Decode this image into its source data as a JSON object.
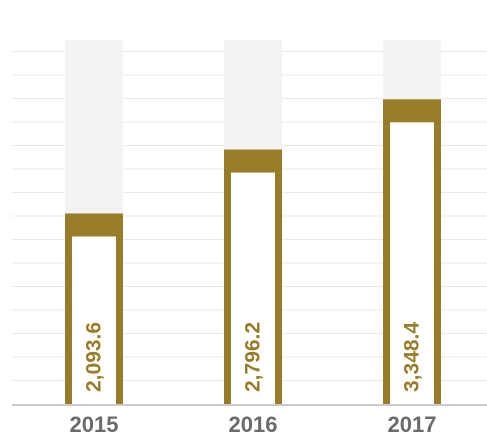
{
  "chart_data": {
    "type": "bar",
    "categories": [
      "2015",
      "2016",
      "2017"
    ],
    "values": [
      2093.6,
      2796.2,
      3348.4
    ],
    "value_labels": [
      "2,093.6",
      "2,796.2",
      "3,348.4"
    ],
    "ylim": [
      0,
      4000
    ],
    "grid": true,
    "legend": "none",
    "colors": {
      "bar": "#987c28",
      "bar_inner": "#ffffff",
      "track": "#f3f3f3",
      "grid": "#e9e9e9",
      "axis": "#c9c9c9",
      "tick_text": "#6b6b6b",
      "value_text": "#987c28"
    }
  }
}
